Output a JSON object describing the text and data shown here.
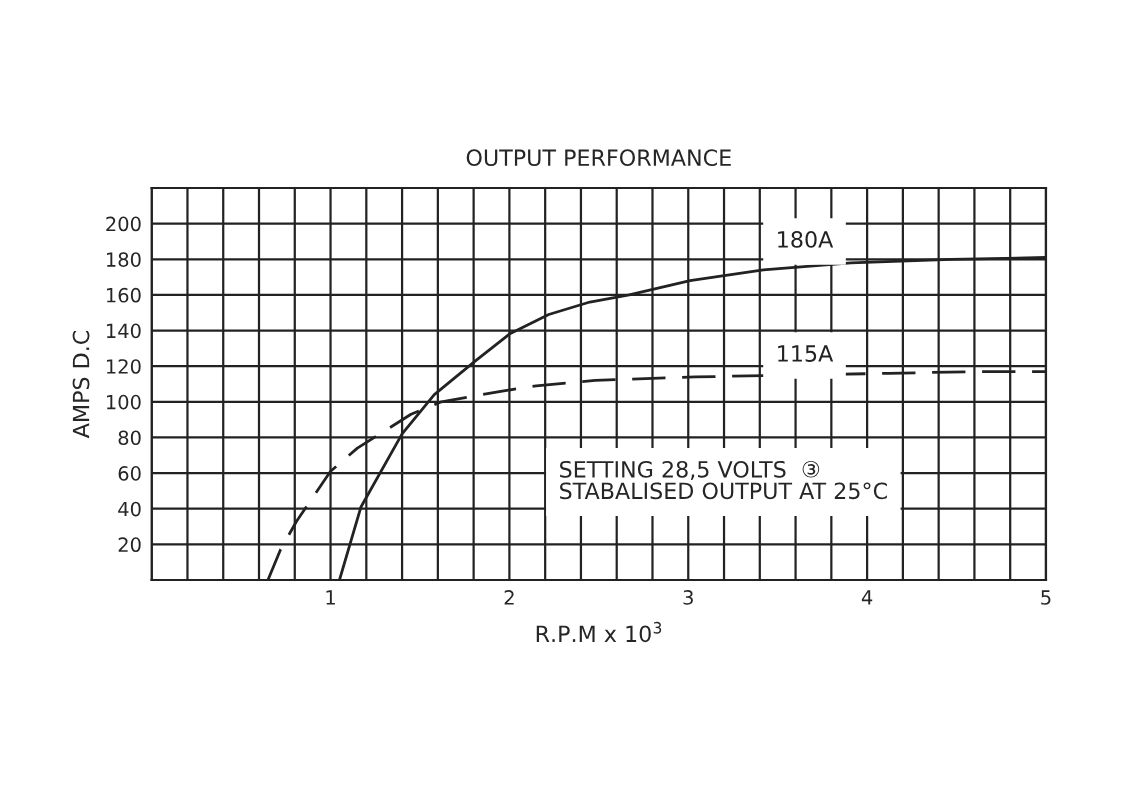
{
  "chart_data": {
    "type": "line",
    "title": "OUTPUT PERFORMANCE",
    "xlabel": "R.P.M x 10$^{3}$",
    "ylabel": "AMPS D.C",
    "xlim": [
      0,
      5
    ],
    "ylim": [
      0,
      220
    ],
    "xticks": [
      {
        "value": 0,
        "label": null
      },
      {
        "value": 0.2,
        "label": null
      },
      {
        "value": 0.4,
        "label": null
      },
      {
        "value": 0.6,
        "label": null
      },
      {
        "value": 0.8,
        "label": null
      },
      1,
      {
        "value": 1.2,
        "label": null
      },
      {
        "value": 1.4,
        "label": null
      },
      {
        "value": 1.6,
        "label": null
      },
      {
        "value": 1.8,
        "label": null
      },
      2,
      {
        "value": 2.2,
        "label": null
      },
      {
        "value": 2.4,
        "label": null
      },
      {
        "value": 2.6,
        "label": null
      },
      {
        "value": 2.8,
        "label": null
      },
      3,
      {
        "value": 3.2,
        "label": null
      },
      {
        "value": 3.4,
        "label": null
      },
      {
        "value": 3.6,
        "label": null
      },
      {
        "value": 3.8,
        "label": null
      },
      4,
      {
        "value": 4.2,
        "label": null
      },
      {
        "value": 4.4,
        "label": null
      },
      {
        "value": 4.6,
        "label": null
      },
      {
        "value": 4.8,
        "label": null
      },
      5
    ],
    "yticks": [
      {
        "value": 0,
        "label": null
      },
      20,
      40,
      60,
      80,
      100,
      120,
      140,
      160,
      180,
      200,
      {
        "value": 220,
        "label": null
      }
    ],
    "grid": true,
    "series": [
      {
        "name": "180A",
        "color": "#222222",
        "line_style": "solid",
        "x": [
          1.05,
          1.17,
          1.4,
          1.58,
          1.81,
          2.0,
          2.22,
          2.45,
          2.67,
          3.01,
          3.42,
          3.91,
          4.47,
          5.0
        ],
        "values": [
          0,
          41,
          82,
          104,
          123,
          138,
          149,
          156,
          160,
          168,
          174,
          178,
          180,
          181
        ]
      },
      {
        "name": "115A",
        "color": "#222222",
        "line_style": "dashed",
        "x": [
          0.65,
          0.72,
          0.81,
          1.0,
          1.15,
          1.45,
          1.62,
          1.96,
          2.15,
          2.48,
          3.04,
          3.6,
          4.12,
          4.64,
          5.0
        ],
        "values": [
          0,
          17,
          33,
          61,
          74,
          93,
          100,
          106,
          109,
          112,
          114,
          115,
          116,
          117,
          117
        ]
      }
    ],
    "annotations": [
      "SETTING 28,5 VOLTS  ③\nSTABALISED OUTPUT AT 25°C"
    ]
  }
}
